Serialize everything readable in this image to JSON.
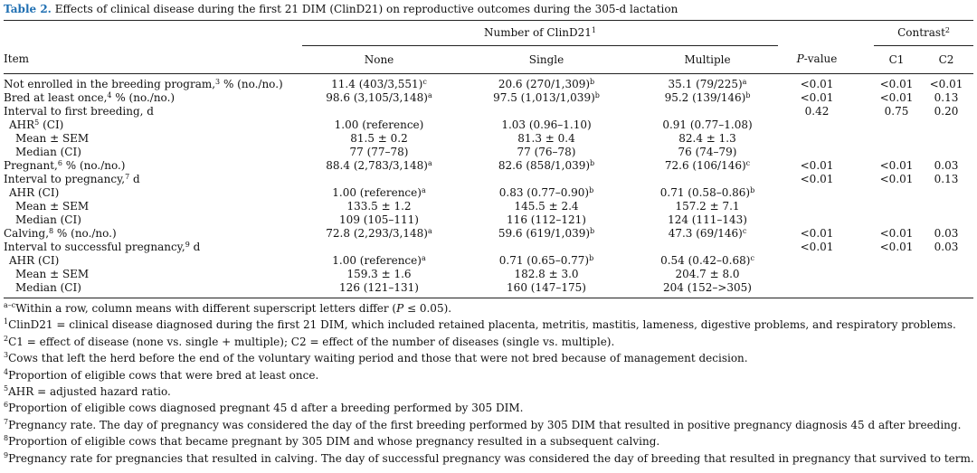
{
  "caption": {
    "label": "Table 2.",
    "text": "Effects of clinical disease during the first 21 DIM (ClinD21) on reproductive outcomes during the 305-d lactation"
  },
  "header": {
    "group_number": "Number of ClinD21",
    "group_number_sup": "1",
    "group_contrast": "Contrast",
    "group_contrast_sup": "2",
    "col_item": "Item",
    "col_none": "None",
    "col_single": "Single",
    "col_multiple": "Multiple",
    "col_p_prefix": "P",
    "col_p_suffix": "-value",
    "col_c1": "C1",
    "col_c2": "C2"
  },
  "rows": [
    {
      "label": "Not enrolled in the breeding program,",
      "label_sup": "3",
      "label_rest": " % (no./no.)",
      "indent": 0,
      "none": "11.4 (403/3,551)",
      "none_sup": "c",
      "single": "20.6 (270/1,309)",
      "single_sup": "b",
      "multiple": "35.1 (79/225)",
      "multiple_sup": "a",
      "p": "<0.01",
      "c1": "<0.01",
      "c2": "<0.01"
    },
    {
      "label": "Bred at least once,",
      "label_sup": "4",
      "label_rest": " % (no./no.)",
      "indent": 0,
      "none": "98.6 (3,105/3,148)",
      "none_sup": "a",
      "single": "97.5 (1,013/1,039)",
      "single_sup": "b",
      "multiple": "95.2 (139/146)",
      "multiple_sup": "b",
      "p": "<0.01",
      "c1": "<0.01",
      "c2": "0.13"
    },
    {
      "label": "Interval to first breeding, d",
      "label_sup": "",
      "label_rest": "",
      "indent": 0,
      "none": "",
      "none_sup": "",
      "single": "",
      "single_sup": "",
      "multiple": "",
      "multiple_sup": "",
      "p": "0.42",
      "c1": "0.75",
      "c2": "0.20"
    },
    {
      "label": "AHR",
      "label_sup": "5",
      "label_rest": " (CI)",
      "indent": 1,
      "none": "1.00 (reference)",
      "none_sup": "",
      "single": "1.03 (0.96–1.10)",
      "single_sup": "",
      "multiple": "0.91 (0.77–1.08)",
      "multiple_sup": "",
      "p": "",
      "c1": "",
      "c2": ""
    },
    {
      "label": "Mean ± SEM",
      "label_sup": "",
      "label_rest": "",
      "indent": 2,
      "none": "81.5 ± 0.2",
      "none_sup": "",
      "single": "81.3 ± 0.4",
      "single_sup": "",
      "multiple": "82.4 ± 1.3",
      "multiple_sup": "",
      "p": "",
      "c1": "",
      "c2": ""
    },
    {
      "label": "Median (CI)",
      "label_sup": "",
      "label_rest": "",
      "indent": 2,
      "none": "77 (77–78)",
      "none_sup": "",
      "single": "77 (76–78)",
      "single_sup": "",
      "multiple": "76 (74–79)",
      "multiple_sup": "",
      "p": "",
      "c1": "",
      "c2": ""
    },
    {
      "label": "Pregnant,",
      "label_sup": "6",
      "label_rest": " % (no./no.)",
      "indent": 0,
      "none": "88.4 (2,783/3,148)",
      "none_sup": "a",
      "single": "82.6 (858/1,039)",
      "single_sup": "b",
      "multiple": "72.6 (106/146)",
      "multiple_sup": "c",
      "p": "<0.01",
      "c1": "<0.01",
      "c2": "0.03"
    },
    {
      "label": "Interval to pregnancy,",
      "label_sup": "7",
      "label_rest": " d",
      "indent": 0,
      "none": "",
      "none_sup": "",
      "single": "",
      "single_sup": "",
      "multiple": "",
      "multiple_sup": "",
      "p": "<0.01",
      "c1": "<0.01",
      "c2": "0.13"
    },
    {
      "label": "AHR (CI)",
      "label_sup": "",
      "label_rest": "",
      "indent": 1,
      "none": "1.00 (reference)",
      "none_sup": "a",
      "single": "0.83 (0.77–0.90)",
      "single_sup": "b",
      "multiple": "0.71 (0.58–0.86)",
      "multiple_sup": "b",
      "p": "",
      "c1": "",
      "c2": ""
    },
    {
      "label": "Mean ± SEM",
      "label_sup": "",
      "label_rest": "",
      "indent": 2,
      "none": "133.5 ± 1.2",
      "none_sup": "",
      "single": "145.5 ± 2.4",
      "single_sup": "",
      "multiple": "157.2 ± 7.1",
      "multiple_sup": "",
      "p": "",
      "c1": "",
      "c2": ""
    },
    {
      "label": "Median (CI)",
      "label_sup": "",
      "label_rest": "",
      "indent": 2,
      "none": "109 (105–111)",
      "none_sup": "",
      "single": "116 (112–121)",
      "single_sup": "",
      "multiple": "124 (111–143)",
      "multiple_sup": "",
      "p": "",
      "c1": "",
      "c2": ""
    },
    {
      "label": "Calving,",
      "label_sup": "8",
      "label_rest": " % (no./no.)",
      "indent": 0,
      "none": "72.8 (2,293/3,148)",
      "none_sup": "a",
      "single": "59.6 (619/1,039)",
      "single_sup": "b",
      "multiple": "47.3 (69/146)",
      "multiple_sup": "c",
      "p": "<0.01",
      "c1": "<0.01",
      "c2": "0.03"
    },
    {
      "label": "Interval to successful pregnancy,",
      "label_sup": "9",
      "label_rest": " d",
      "indent": 0,
      "none": "",
      "none_sup": "",
      "single": "",
      "single_sup": "",
      "multiple": "",
      "multiple_sup": "",
      "p": "<0.01",
      "c1": "<0.01",
      "c2": "0.03"
    },
    {
      "label": "AHR (CI)",
      "label_sup": "",
      "label_rest": "",
      "indent": 1,
      "none": "1.00 (reference)",
      "none_sup": "a",
      "single": "0.71 (0.65–0.77)",
      "single_sup": "b",
      "multiple": "0.54 (0.42–0.68)",
      "multiple_sup": "c",
      "p": "",
      "c1": "",
      "c2": ""
    },
    {
      "label": "Mean ± SEM",
      "label_sup": "",
      "label_rest": "",
      "indent": 2,
      "none": "159.3 ± 1.6",
      "none_sup": "",
      "single": "182.8 ± 3.0",
      "single_sup": "",
      "multiple": "204.7 ± 8.0",
      "multiple_sup": "",
      "p": "",
      "c1": "",
      "c2": ""
    },
    {
      "label": "Median (CI)",
      "label_sup": "",
      "label_rest": "",
      "indent": 2,
      "none": "126 (121–131)",
      "none_sup": "",
      "single": "160 (147–175)",
      "single_sup": "",
      "multiple": "204 (152–>305)",
      "multiple_sup": "",
      "p": "",
      "c1": "",
      "c2": ""
    }
  ],
  "footnotes": {
    "f0_sup": "a–c",
    "f0_a": "Within a row, column means with different superscript letters differ (",
    "f0_p": "P",
    "f0_b": " ≤ 0.05).",
    "f1_sup": "1",
    "f1": "ClinD21 = clinical disease diagnosed during the first 21 DIM, which included retained placenta, metritis, mastitis, lameness, digestive problems, and respiratory problems.",
    "f2_sup": "2",
    "f2": "C1 = effect of disease (none vs. single + multiple); C2 = effect of the number of diseases (single vs. multiple).",
    "f3_sup": "3",
    "f3": "Cows that left the herd before the end of the voluntary waiting period and those that were not bred because of management decision.",
    "f4_sup": "4",
    "f4": "Proportion of eligible cows that were bred at least once.",
    "f5_sup": "5",
    "f5": "AHR = adjusted hazard ratio.",
    "f6_sup": "6",
    "f6": "Proportion of eligible cows diagnosed pregnant 45 d after a breeding performed by 305 DIM.",
    "f7_sup": "7",
    "f7": "Pregnancy rate. The day of pregnancy was considered the day of the first breeding performed by 305 DIM that resulted in positive pregnancy diagnosis 45 d after breeding.",
    "f8_sup": "8",
    "f8": "Proportion of eligible cows that became pregnant by 305 DIM and whose pregnancy resulted in a subsequent calving.",
    "f9_sup": "9",
    "f9": "Pregnancy rate for pregnancies that resulted in calving. The day of successful pregnancy was considered the day of breeding that resulted in pregnancy that survived to term."
  }
}
